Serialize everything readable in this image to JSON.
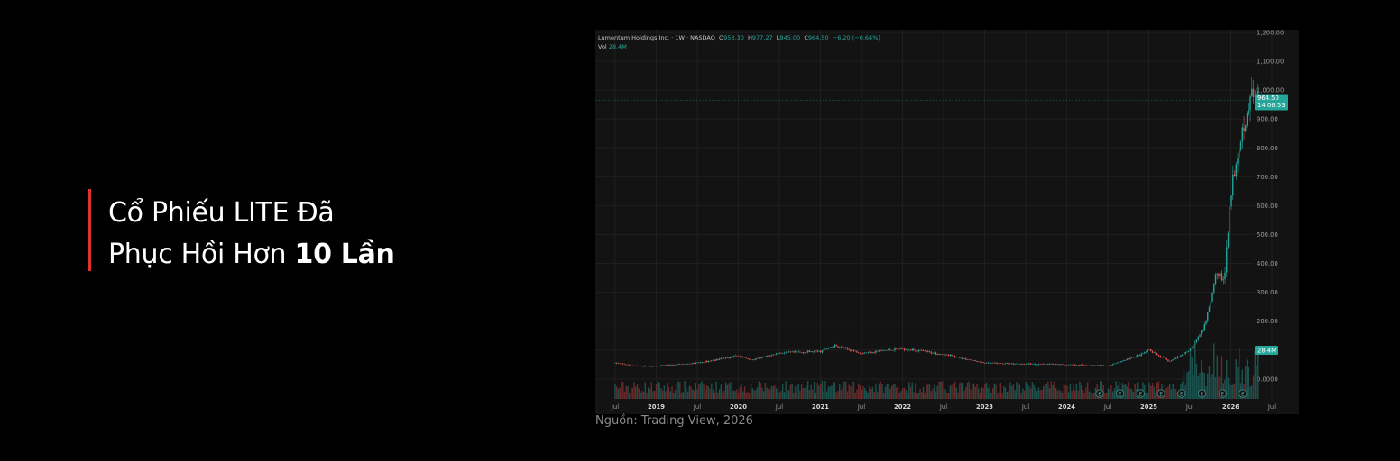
{
  "headline": {
    "line1": "Cổ Phiếu LITE Đã",
    "line2_prefix": "Phục Hồi Hơn ",
    "line2_bold": "10 Lần"
  },
  "source": "Nguồn: Trading View, 2026",
  "colors": {
    "accent_bar": "#e03131",
    "up": "#26a69a",
    "down": "#ef5350",
    "panel_bg": "#131313"
  },
  "chart_data": {
    "type": "candlestick",
    "legend": {
      "symbol": "Lumentum Holdings Inc. · 1W · NASDAQ",
      "open_label": "O",
      "open": "953.30",
      "high_label": "H",
      "high": "977.27",
      "low_label": "L",
      "low": "845.00",
      "close_label": "C",
      "close": "964.50",
      "change": "−6.20 (−0.64%)",
      "vol_label": "Vol",
      "vol": "28.4M"
    },
    "price_tag": {
      "value": "964.50",
      "countdown": "14:06:53"
    },
    "vol_tag": "28.4M",
    "y_ticks": [
      "1,200.00",
      "1,100.00",
      "1,000.00",
      "900.00",
      "800.00",
      "700.00",
      "600.00",
      "500.00",
      "400.00",
      "300.00",
      "200.00",
      "100.00",
      "0.0000"
    ],
    "x_ticks": [
      {
        "label": "Jul",
        "bold": false
      },
      {
        "label": "2019",
        "bold": true
      },
      {
        "label": "Jul",
        "bold": false
      },
      {
        "label": "2020",
        "bold": true
      },
      {
        "label": "Jul",
        "bold": false
      },
      {
        "label": "2021",
        "bold": true
      },
      {
        "label": "Jul",
        "bold": false
      },
      {
        "label": "2022",
        "bold": true
      },
      {
        "label": "Jul",
        "bold": false
      },
      {
        "label": "2023",
        "bold": true
      },
      {
        "label": "Jul",
        "bold": false
      },
      {
        "label": "2024",
        "bold": true
      },
      {
        "label": "Jul",
        "bold": false
      },
      {
        "label": "2025",
        "bold": true
      },
      {
        "label": "Jul",
        "bold": false
      },
      {
        "label": "2026",
        "bold": true
      },
      {
        "label": "Jul",
        "bold": false
      }
    ],
    "y_range": [
      0,
      1200
    ],
    "grid": true,
    "price_path": [
      {
        "t": "2018-07",
        "price": 55
      },
      {
        "t": "2018-10",
        "price": 45
      },
      {
        "t": "2019-01",
        "price": 44
      },
      {
        "t": "2019-07",
        "price": 55
      },
      {
        "t": "2020-01",
        "price": 80
      },
      {
        "t": "2020-03",
        "price": 65
      },
      {
        "t": "2020-07",
        "price": 90
      },
      {
        "t": "2021-01",
        "price": 95
      },
      {
        "t": "2021-03",
        "price": 115
      },
      {
        "t": "2021-07",
        "price": 90
      },
      {
        "t": "2022-01",
        "price": 105
      },
      {
        "t": "2022-07",
        "price": 85
      },
      {
        "t": "2023-01",
        "price": 55
      },
      {
        "t": "2023-07",
        "price": 52
      },
      {
        "t": "2024-01",
        "price": 50
      },
      {
        "t": "2024-07",
        "price": 45
      },
      {
        "t": "2024-12",
        "price": 85
      },
      {
        "t": "2025-01",
        "price": 100
      },
      {
        "t": "2025-04",
        "price": 60
      },
      {
        "t": "2025-07",
        "price": 100
      },
      {
        "t": "2025-09",
        "price": 170
      },
      {
        "t": "2025-10",
        "price": 260
      },
      {
        "t": "2025-11",
        "price": 380
      },
      {
        "t": "2025-12",
        "price": 330
      },
      {
        "t": "2026-01",
        "price": 650
      },
      {
        "t": "2026-02",
        "price": 790
      },
      {
        "t": "2026-03",
        "price": 900
      },
      {
        "t": "2026-04",
        "price": 980
      },
      {
        "t": "2026-05",
        "price": 964.5
      }
    ],
    "earnings_markers": 8,
    "earnings_label": "E"
  }
}
